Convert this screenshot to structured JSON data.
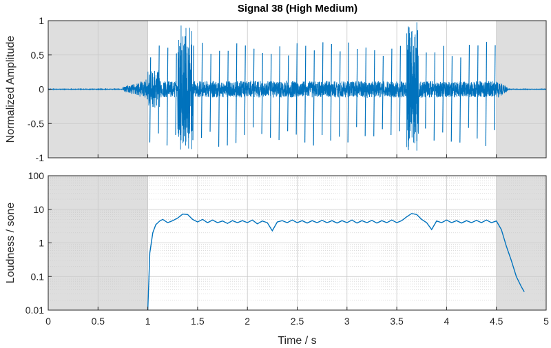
{
  "title": "Signal 38 (High Medium)",
  "colors": {
    "line": "#0072BD",
    "shade": "#dedede",
    "grid": "#c8c8c8",
    "axis": "#262626"
  },
  "chart_data": [
    {
      "type": "line",
      "id": "waveform",
      "title": "Signal 38 (High Medium)",
      "xlabel": "",
      "ylabel": "Normalized Amplitude",
      "xlim": [
        0,
        5
      ],
      "ylim": [
        -1,
        1
      ],
      "y_ticks": [
        -1,
        -0.5,
        0,
        0.5,
        1
      ],
      "y_tick_labels": [
        "-1",
        "-0.5",
        "0",
        "0.5",
        "1"
      ],
      "x_ticks": [
        0,
        0.5,
        1,
        1.5,
        2,
        2.5,
        3,
        3.5,
        4,
        4.5,
        5
      ],
      "x_tick_labels_shown": false,
      "grid": true,
      "shaded_regions": [
        [
          0,
          1
        ],
        [
          4.5,
          5
        ]
      ],
      "signal_onset": 1,
      "signal_offset": 4.5,
      "peak_amplitude": 1,
      "transient_count": 41,
      "bursts": [
        [
          1.3,
          1.45
        ],
        [
          3.6,
          3.72
        ]
      ]
    },
    {
      "type": "line",
      "id": "loudness",
      "xlabel": "Time / s",
      "ylabel": "Loudness / sone",
      "xlim": [
        0,
        5
      ],
      "ylim": [
        0.01,
        100
      ],
      "y_scale": "log",
      "y_ticks": [
        0.01,
        0.1,
        1,
        10,
        100
      ],
      "y_tick_labels": [
        "0.01",
        "0.1",
        "1",
        "10",
        "100"
      ],
      "x_ticks": [
        0,
        0.5,
        1,
        1.5,
        2,
        2.5,
        3,
        3.5,
        4,
        4.5,
        5
      ],
      "x_tick_labels": [
        "0",
        "0.5",
        "1",
        "1.5",
        "2",
        "2.5",
        "3",
        "3.5",
        "4",
        "4.5",
        "5"
      ],
      "grid": true,
      "minor_grid": true,
      "shaded_regions": [
        [
          0,
          1
        ],
        [
          4.5,
          5
        ]
      ],
      "series": [
        {
          "x": [
            1.0,
            1.02,
            1.05,
            1.08,
            1.12,
            1.15,
            1.2,
            1.25,
            1.3,
            1.35,
            1.4,
            1.45,
            1.5,
            1.55,
            1.6,
            1.65,
            1.7,
            1.75,
            1.8,
            1.85,
            1.9,
            1.95,
            2.0,
            2.05,
            2.1,
            2.15,
            2.2,
            2.25,
            2.3,
            2.35,
            2.4,
            2.45,
            2.5,
            2.55,
            2.6,
            2.65,
            2.7,
            2.75,
            2.8,
            2.85,
            2.9,
            2.95,
            3.0,
            3.05,
            3.1,
            3.15,
            3.2,
            3.25,
            3.3,
            3.35,
            3.4,
            3.45,
            3.5,
            3.55,
            3.6,
            3.65,
            3.7,
            3.75,
            3.8,
            3.85,
            3.9,
            3.95,
            4.0,
            4.05,
            4.1,
            4.15,
            4.2,
            4.25,
            4.3,
            4.35,
            4.4,
            4.45,
            4.5,
            4.55,
            4.6,
            4.65,
            4.7,
            4.75,
            4.78
          ],
          "y": [
            0.01,
            0.5,
            2.0,
            3.5,
            4.5,
            5.0,
            4.0,
            4.6,
            5.5,
            7.2,
            7.0,
            5.0,
            4.2,
            5.0,
            4.0,
            4.8,
            4.0,
            4.5,
            3.8,
            4.6,
            4.0,
            4.6,
            4.0,
            4.8,
            3.7,
            4.5,
            4.0,
            2.3,
            4.2,
            4.6,
            4.0,
            4.8,
            4.0,
            4.6,
            3.9,
            4.6,
            4.0,
            4.7,
            4.0,
            4.6,
            3.9,
            4.6,
            4.0,
            4.8,
            3.9,
            4.6,
            4.0,
            4.7,
            3.9,
            4.6,
            4.0,
            4.8,
            4.0,
            4.6,
            6.0,
            7.5,
            7.0,
            5.0,
            4.0,
            2.5,
            4.5,
            4.0,
            4.8,
            4.0,
            4.6,
            3.9,
            4.6,
            4.0,
            4.7,
            4.0,
            4.8,
            4.0,
            4.5,
            2.5,
            0.8,
            0.3,
            0.1,
            0.05,
            0.035
          ]
        }
      ]
    }
  ]
}
